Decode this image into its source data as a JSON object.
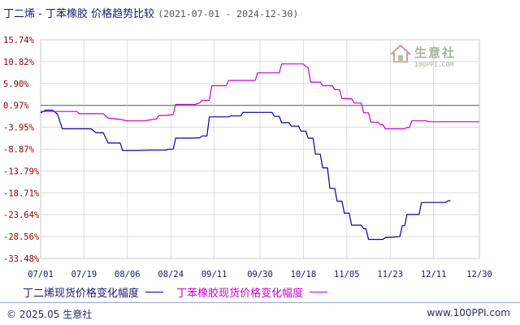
{
  "title": {
    "main": "丁二烯 - 丁苯橡胶 价格趋势比较",
    "range": "(2021-07-01 - 2024-12-30)"
  },
  "legend": {
    "series1": "丁二烯现货价格变化幅度",
    "series2": "丁苯橡胶现货价格变化幅度"
  },
  "footer": {
    "left": "© 2025.05 生意社",
    "right": "www.100PPI.com"
  },
  "watermark": {
    "name": "生意社",
    "url": "100PPI.COM"
  },
  "colors": {
    "series1": "#0000aa",
    "series2": "#cc00cc",
    "tick_text": "#8b0000",
    "axis_text": "#1a1a6e",
    "grid": "#d0d0d0"
  },
  "chart_data": {
    "type": "line",
    "ylim": [
      -33.48,
      15.74
    ],
    "yticks": [
      "15.74%",
      "10.82%",
      "5.90%",
      "0.97%",
      "-3.95%",
      "-8.87%",
      "-13.79%",
      "-18.71%",
      "-23.64%",
      "-28.56%",
      "-33.48%"
    ],
    "ytick_values": [
      15.74,
      10.82,
      5.9,
      0.97,
      -3.95,
      -8.87,
      -13.79,
      -18.71,
      -23.64,
      -28.56,
      -33.48
    ],
    "xticks": [
      "07/01",
      "07/19",
      "08/06",
      "08/24",
      "09/11",
      "09/30",
      "10/18",
      "11/05",
      "11/23",
      "12/11",
      "12/30"
    ],
    "x_days": [
      0,
      18,
      36,
      54,
      72,
      91,
      109,
      127,
      145,
      163,
      182
    ],
    "grid": true,
    "legend_position": "bottom-left",
    "series": [
      {
        "name": "丁二烯现货价格变化幅度",
        "color": "#0000aa",
        "points": [
          [
            0,
            -0.7
          ],
          [
            2,
            -0.1
          ],
          [
            5,
            -0.1
          ],
          [
            7,
            -1.0
          ],
          [
            9,
            -4.3
          ],
          [
            21,
            -4.3
          ],
          [
            23,
            -5.2
          ],
          [
            26,
            -5.2
          ],
          [
            28,
            -7.5
          ],
          [
            33,
            -7.5
          ],
          [
            34,
            -9.2
          ],
          [
            40,
            -9.2
          ],
          [
            45,
            -9.1
          ],
          [
            52,
            -9.1
          ],
          [
            53,
            -8.9
          ],
          [
            55,
            -8.9
          ],
          [
            56,
            -6.4
          ],
          [
            63,
            -6.4
          ],
          [
            66,
            -6.3
          ],
          [
            67,
            -5.9
          ],
          [
            69,
            -5.9
          ],
          [
            70,
            -1.6
          ],
          [
            78,
            -1.6
          ],
          [
            79,
            -1.4
          ],
          [
            83,
            -1.4
          ],
          [
            84,
            -0.6
          ],
          [
            96,
            -0.6
          ],
          [
            97,
            -1.5
          ],
          [
            99,
            -1.5
          ],
          [
            100,
            -2.9
          ],
          [
            103,
            -2.9
          ],
          [
            104,
            -3.7
          ],
          [
            107,
            -3.7
          ],
          [
            108,
            -4.8
          ],
          [
            110,
            -4.8
          ],
          [
            111,
            -6.4
          ],
          [
            113,
            -6.4
          ],
          [
            114,
            -10.0
          ],
          [
            116,
            -10.0
          ],
          [
            117,
            -13.1
          ],
          [
            119,
            -13.1
          ],
          [
            120,
            -17.7
          ],
          [
            122,
            -17.7
          ],
          [
            123,
            -20.6
          ],
          [
            124,
            -20.6
          ],
          [
            125,
            -20.6
          ],
          [
            126,
            -23.3
          ],
          [
            128,
            -23.3
          ],
          [
            129,
            -26.0
          ],
          [
            133,
            -26.0
          ],
          [
            134,
            -26.8
          ],
          [
            135,
            -26.8
          ],
          [
            136,
            -29.2
          ],
          [
            142,
            -29.2
          ],
          [
            143,
            -28.8
          ],
          [
            146,
            -28.7
          ],
          [
            148,
            -28.6
          ],
          [
            149,
            -28.6
          ],
          [
            150,
            -26.1
          ],
          [
            151,
            -26.1
          ],
          [
            152,
            -23.6
          ],
          [
            157,
            -23.6
          ],
          [
            158,
            -20.9
          ],
          [
            168,
            -20.9
          ],
          [
            169,
            -20.5
          ],
          [
            170,
            -20.5
          ]
        ]
      },
      {
        "name": "丁苯橡胶现货价格变化幅度",
        "color": "#cc00cc",
        "points": [
          [
            0,
            -0.4
          ],
          [
            15,
            -0.4
          ],
          [
            16,
            -0.9
          ],
          [
            26,
            -0.9
          ],
          [
            27,
            -1.4
          ],
          [
            28,
            -1.9
          ],
          [
            33,
            -2.2
          ],
          [
            36,
            -2.5
          ],
          [
            43,
            -2.5
          ],
          [
            48,
            -2.1
          ],
          [
            49,
            -1.3
          ],
          [
            52,
            -1.3
          ],
          [
            55,
            -1.1
          ],
          [
            56,
            1.2
          ],
          [
            64,
            1.2
          ],
          [
            66,
            1.5
          ],
          [
            67,
            2.1
          ],
          [
            70,
            2.1
          ],
          [
            71,
            5.4
          ],
          [
            77,
            5.4
          ],
          [
            78,
            6.6
          ],
          [
            89,
            6.6
          ],
          [
            90,
            8.3
          ],
          [
            99,
            8.3
          ],
          [
            100,
            10.3
          ],
          [
            109,
            10.3
          ],
          [
            110,
            9.7
          ],
          [
            111,
            9.5
          ],
          [
            112,
            6.2
          ],
          [
            116,
            6.2
          ],
          [
            117,
            5.4
          ],
          [
            121,
            5.4
          ],
          [
            122,
            4.5
          ],
          [
            124,
            4.5
          ],
          [
            125,
            2.5
          ],
          [
            129,
            2.5
          ],
          [
            130,
            1.5
          ],
          [
            133,
            1.5
          ],
          [
            134,
            -0.7
          ],
          [
            136,
            -0.7
          ],
          [
            137,
            -2.8
          ],
          [
            140,
            -2.8
          ],
          [
            141,
            -3.4
          ],
          [
            142,
            -3.4
          ],
          [
            143,
            -4.3
          ],
          [
            151,
            -4.3
          ],
          [
            152,
            -4.0
          ],
          [
            153,
            -4.0
          ],
          [
            154,
            -2.5
          ],
          [
            160,
            -2.5
          ],
          [
            161,
            -2.7
          ],
          [
            176,
            -2.7
          ],
          [
            182,
            -2.7
          ]
        ]
      }
    ]
  }
}
